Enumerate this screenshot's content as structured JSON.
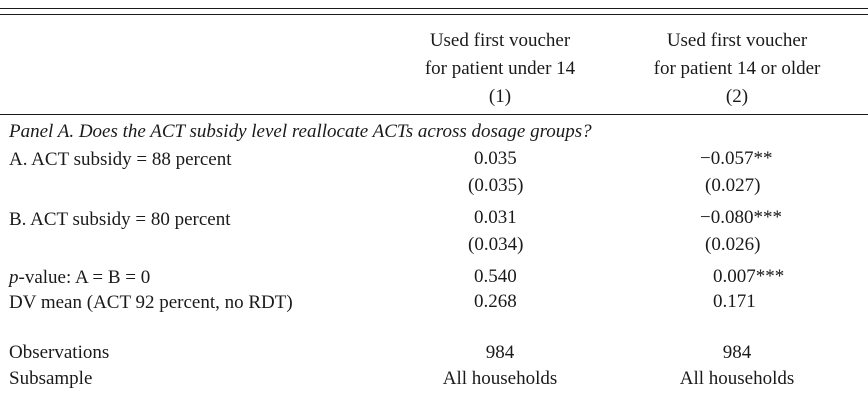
{
  "columns": [
    {
      "line1": "Used first voucher",
      "line2": "for patient under 14",
      "number": "(1)"
    },
    {
      "line1": "Used first voucher",
      "line2": "for patient 14 or older",
      "number": "(2)"
    }
  ],
  "panel_title": "Panel A. Does the ACT subsidy level reallocate ACTs across dosage groups?",
  "rows": {
    "a": {
      "label": "A. ACT subsidy = 88 percent",
      "c1": "0.035",
      "c1_se": "(0.035)",
      "c2": "−0.057",
      "c2_stars": "**",
      "c2_se": "(0.027)"
    },
    "b": {
      "label": "B. ACT subsidy = 80 percent",
      "c1": "0.031",
      "c1_se": "(0.034)",
      "c2": "−0.080",
      "c2_stars": "***",
      "c2_se": "(0.026)"
    },
    "pval": {
      "label_italic": "p",
      "label_rest": "-value: A = B = 0",
      "c1": "0.540",
      "c2": "0.007",
      "c2_stars": "***"
    },
    "dv": {
      "label": "DV mean (ACT 92 percent, no RDT)",
      "c1": "0.268",
      "c2": "0.171"
    },
    "obs": {
      "label": "Observations",
      "c1": "984",
      "c2": "984"
    },
    "subsample": {
      "label": "Subsample",
      "c1": "All households",
      "c2": "All households"
    }
  }
}
